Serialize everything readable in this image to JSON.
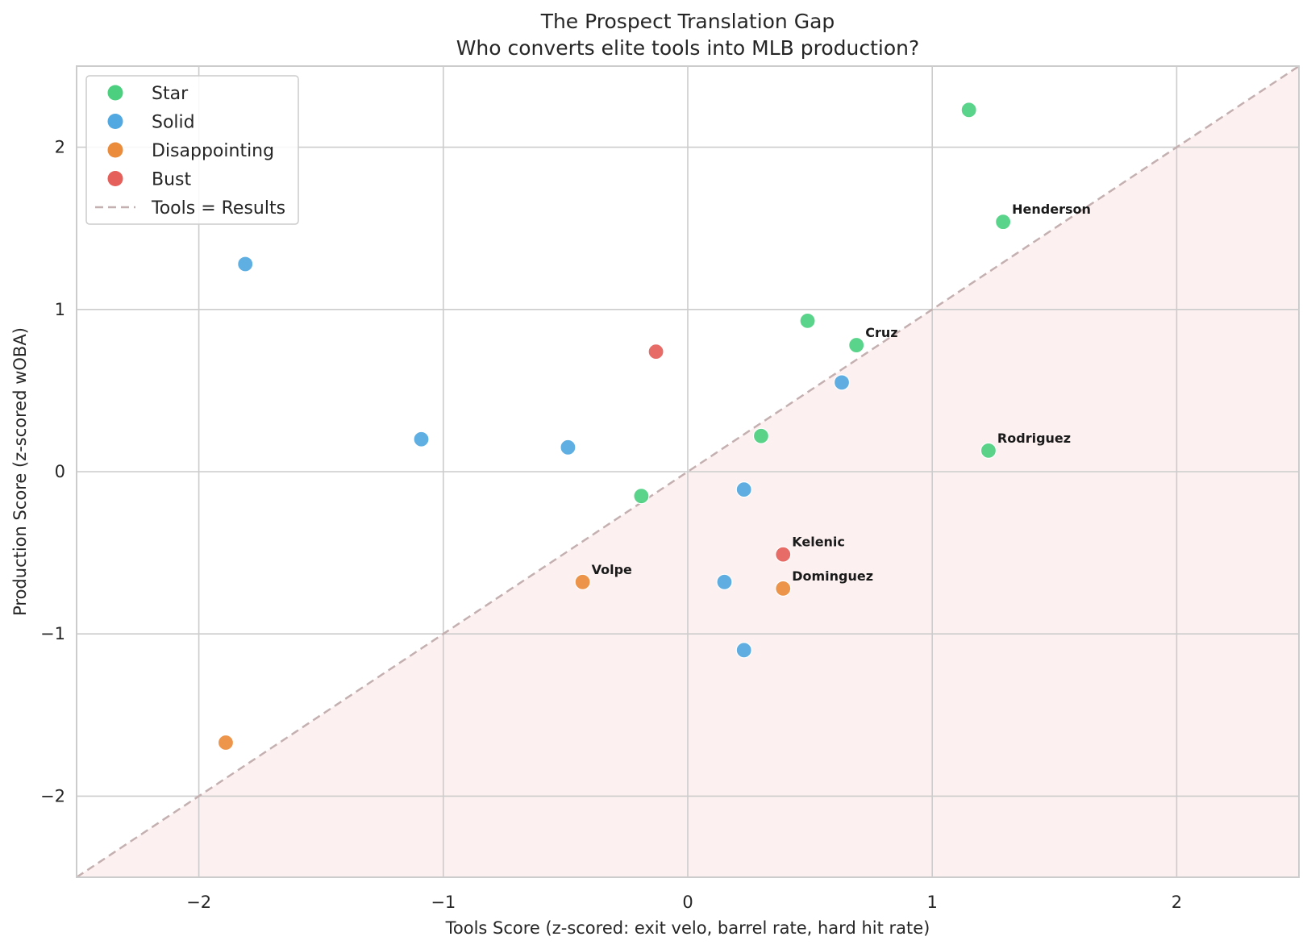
{
  "chart_data": {
    "type": "scatter",
    "title": "The Prospect Translation Gap",
    "subtitle": "Who converts elite tools into MLB production?",
    "xlabel": "Tools Score (z-scored: exit velo, barrel rate, hard hit rate)",
    "ylabel": "Production Score (z-scored wOBA)",
    "xlim": [
      -2.5,
      2.5
    ],
    "ylim": [
      -2.5,
      2.5
    ],
    "xticks": [
      -2,
      -1,
      0,
      1,
      2
    ],
    "yticks": [
      -2,
      -1,
      0,
      1,
      2
    ],
    "xtick_labels": [
      "−2",
      "−1",
      "0",
      "1",
      "2"
    ],
    "ytick_labels": [
      "−2",
      "−1",
      "0",
      "1",
      "2"
    ],
    "grid": true,
    "legend_position": "top-left",
    "series": [
      {
        "name": "Star",
        "color": "#4cd080",
        "points": [
          {
            "x": 1.15,
            "y": 2.23
          },
          {
            "x": 1.29,
            "y": 1.54
          },
          {
            "x": 0.49,
            "y": 0.93
          },
          {
            "x": 0.69,
            "y": 0.78
          },
          {
            "x": 0.3,
            "y": 0.22
          },
          {
            "x": 1.23,
            "y": 0.13
          },
          {
            "x": -0.19,
            "y": -0.15
          }
        ]
      },
      {
        "name": "Solid",
        "color": "#52a8e0",
        "points": [
          {
            "x": -1.81,
            "y": 1.28
          },
          {
            "x": -1.09,
            "y": 0.2
          },
          {
            "x": -0.49,
            "y": 0.15
          },
          {
            "x": 0.63,
            "y": 0.55
          },
          {
            "x": 0.23,
            "y": -0.11
          },
          {
            "x": 0.15,
            "y": -0.68
          },
          {
            "x": 0.23,
            "y": -1.1
          }
        ]
      },
      {
        "name": "Disappointing",
        "color": "#ea8c3c",
        "points": [
          {
            "x": -0.43,
            "y": -0.68
          },
          {
            "x": 0.39,
            "y": -0.72
          },
          {
            "x": -1.89,
            "y": -1.67
          }
        ]
      },
      {
        "name": "Bust",
        "color": "#e5605a",
        "points": [
          {
            "x": -0.13,
            "y": 0.74
          },
          {
            "x": 0.39,
            "y": -0.51
          }
        ]
      }
    ],
    "reference_line": {
      "name": "Tools = Results",
      "color": "#c4b0b0",
      "from": [
        -2.5,
        -2.5
      ],
      "to": [
        2.5,
        2.5
      ]
    },
    "shaded_region": {
      "description": "below y = x",
      "color": "#fdf0f0"
    },
    "annotations": [
      {
        "text": "Henderson",
        "x": 1.29,
        "y": 1.54
      },
      {
        "text": "Cruz",
        "x": 0.69,
        "y": 0.78
      },
      {
        "text": "Rodriguez",
        "x": 1.23,
        "y": 0.13
      },
      {
        "text": "Kelenic",
        "x": 0.39,
        "y": -0.51
      },
      {
        "text": "Dominguez",
        "x": 0.39,
        "y": -0.72
      },
      {
        "text": "Volpe",
        "x": -0.43,
        "y": -0.68
      }
    ]
  }
}
